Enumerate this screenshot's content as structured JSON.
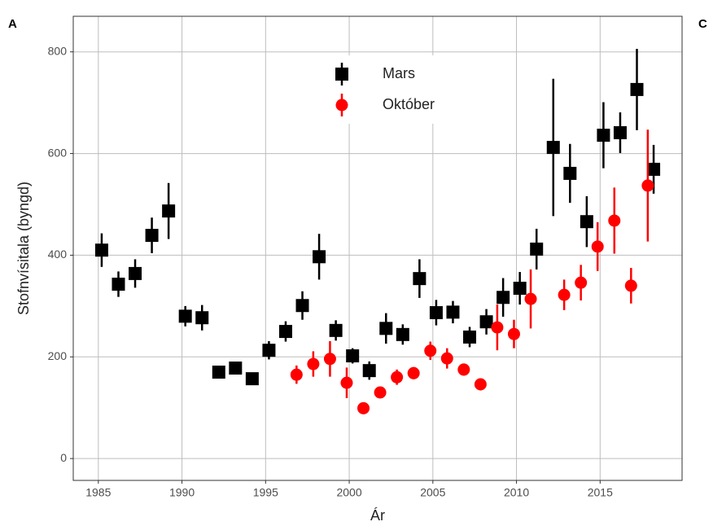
{
  "panel_labels": [
    "A",
    "C"
  ],
  "chart_data": {
    "type": "scatter",
    "x_label": "Ár",
    "y_label": "Stofnvísitala (byngd)",
    "xlim": [
      1983.5,
      2019.9
    ],
    "ylim": [
      -43,
      870
    ],
    "xticks": [
      1985,
      1990,
      1995,
      2000,
      2005,
      2010,
      2015
    ],
    "yticks": [
      0,
      200,
      400,
      600,
      800
    ],
    "grid": true,
    "legend": "top",
    "series": [
      {
        "name": "Mars",
        "color": "#000000",
        "marker": "square",
        "x": [
          1985.2,
          1986.2,
          1987.2,
          1988.2,
          1989.2,
          1990.2,
          1991.2,
          1992.2,
          1993.2,
          1994.2,
          1995.2,
          1996.2,
          1997.2,
          1998.2,
          1999.2,
          2000.2,
          2001.2,
          2002.2,
          2003.2,
          2004.2,
          2005.2,
          2006.2,
          2007.2,
          2008.2,
          2009.2,
          2010.2,
          2011.2,
          2012.2,
          2013.2,
          2014.2,
          2015.2,
          2016.2,
          2017.2,
          2018.2
        ],
        "values": [
          410,
          343,
          364,
          439,
          487,
          280,
          277,
          170,
          178,
          157,
          213,
          250,
          301,
          397,
          252,
          202,
          173,
          256,
          244,
          354,
          287,
          288,
          239,
          269,
          317,
          335,
          412,
          612,
          561,
          466,
          636,
          641,
          726,
          569
        ],
        "errors": [
          33,
          25,
          28,
          35,
          55,
          20,
          25,
          8,
          12,
          10,
          18,
          20,
          28,
          45,
          20,
          15,
          18,
          30,
          20,
          38,
          25,
          22,
          20,
          25,
          38,
          32,
          40,
          135,
          58,
          50,
          65,
          40,
          80,
          48
        ]
      },
      {
        "name": "Október",
        "color": "#ff0000",
        "marker": "circle",
        "x": [
          1996.85,
          1997.85,
          1998.85,
          1999.85,
          2000.85,
          2001.85,
          2002.85,
          2003.85,
          2004.85,
          2005.85,
          2006.85,
          2007.85,
          2008.85,
          2009.85,
          2010.85,
          2012.85,
          2013.85,
          2014.85,
          2015.85,
          2016.85,
          2017.85
        ],
        "values": [
          165,
          186,
          196,
          149,
          99,
          130,
          160,
          168,
          212,
          197,
          175,
          146,
          258,
          245,
          314,
          322,
          346,
          417,
          468,
          340,
          537
        ],
        "errors": [
          18,
          25,
          35,
          30,
          8,
          10,
          15,
          12,
          18,
          20,
          12,
          12,
          45,
          28,
          58,
          30,
          35,
          48,
          65,
          35,
          110
        ]
      }
    ]
  }
}
